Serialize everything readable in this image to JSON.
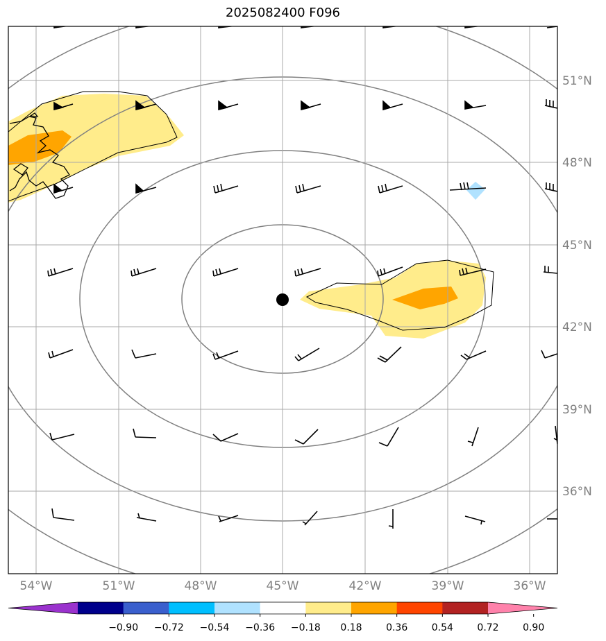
{
  "title": "2025082400 F096",
  "map": {
    "lat_labels": [
      "51°N",
      "48°N",
      "45°N",
      "42°N",
      "39°N",
      "36°N"
    ],
    "lon_labels": [
      "54°W",
      "51°W",
      "48°W",
      "45°W",
      "42°W",
      "39°W",
      "36°W"
    ],
    "center_marker": "storm-center-dot",
    "range_ring_color": "#808080",
    "gridline_color": "#a0a0a0",
    "coastline_color": "#000000",
    "wind_barb_color": "#000000"
  },
  "colorbar": {
    "ticks": [
      "−0.90",
      "−0.72",
      "−0.54",
      "−0.36",
      "−0.18",
      "0.18",
      "0.36",
      "0.54",
      "0.72",
      "0.90"
    ],
    "colors": [
      "#9a32cd",
      "#00008b",
      "#3a5fcd",
      "#00bfff",
      "#b0e2ff",
      "#ffffff",
      "#ffec8b",
      "#ffa500",
      "#ff4500",
      "#b22222",
      "#ff82ab"
    ]
  },
  "chart_data": {
    "type": "map",
    "title": "2025082400 F096",
    "lat_range": [
      33,
      53
    ],
    "lon_range": [
      -55,
      -35
    ],
    "center": {
      "lat": 43,
      "lon": -45
    },
    "shaded_regions": [
      {
        "level": "0.18–0.36",
        "color": "#ffec8b",
        "location": "west, near 48–50°N 55–49°W"
      },
      {
        "level": "0.36–0.54",
        "color": "#ffa500",
        "location": "near 48–49°N 55–53°W"
      },
      {
        "level": "0.18–0.36",
        "color": "#ffec8b",
        "location": "east, near 42–44°N 44–38°W"
      },
      {
        "level": "0.36–0.54",
        "color": "#ffa500",
        "location": "near 43°N 40–39°W"
      },
      {
        "level": "−0.36–−0.18",
        "color": "#b0e2ff",
        "location": "near 47°N 38°W"
      }
    ],
    "colorbar_levels": [
      -0.9,
      -0.72,
      -0.54,
      -0.36,
      -0.18,
      0.18,
      0.36,
      0.54,
      0.72,
      0.9
    ]
  }
}
